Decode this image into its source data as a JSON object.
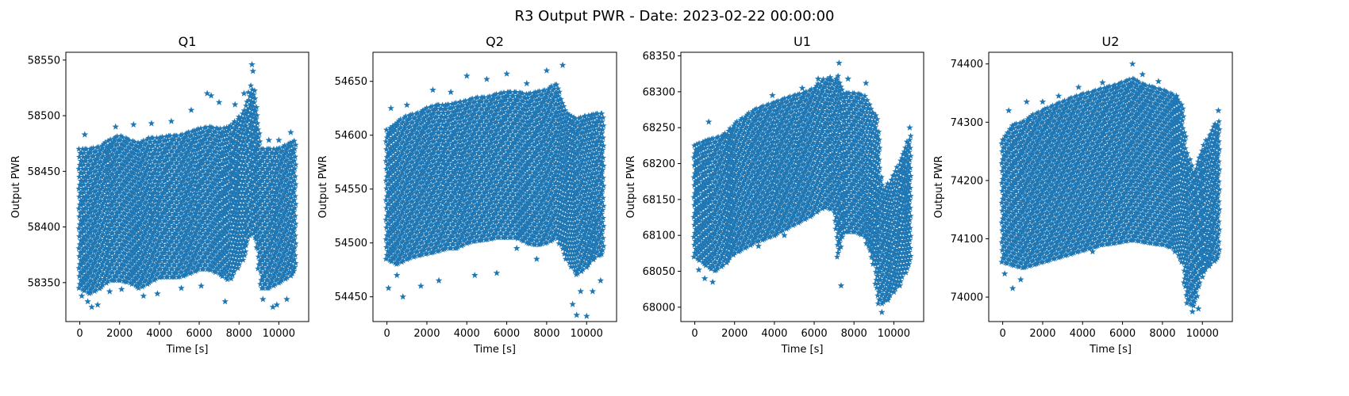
{
  "figure": {
    "suptitle": "R3 Output PWR - Date: 2023-02-22 00:00:00",
    "series_color": "#1f77b4",
    "marker": "star"
  },
  "chart_data": [
    {
      "type": "scatter",
      "title": "Q1",
      "xlabel": "Time [s]",
      "ylabel": "Output PWR",
      "xlim": [
        -700,
        11500
      ],
      "ylim": [
        58315,
        58557
      ],
      "xticks": [
        0,
        2000,
        4000,
        6000,
        8000,
        10000
      ],
      "yticks": [
        58350,
        58400,
        58450,
        58500,
        58550
      ],
      "band": [
        [
          0,
          58345,
          58470
        ],
        [
          500,
          58340,
          58470
        ],
        [
          1000,
          58345,
          58472
        ],
        [
          1500,
          58352,
          58478
        ],
        [
          2000,
          58352,
          58482
        ],
        [
          2500,
          58350,
          58478
        ],
        [
          3000,
          58345,
          58475
        ],
        [
          3500,
          58350,
          58480
        ],
        [
          4000,
          58355,
          58480
        ],
        [
          4500,
          58355,
          58482
        ],
        [
          5000,
          58355,
          58482
        ],
        [
          5500,
          58358,
          58485
        ],
        [
          6000,
          58362,
          58488
        ],
        [
          6500,
          58362,
          58490
        ],
        [
          7000,
          58358,
          58488
        ],
        [
          7500,
          58352,
          58490
        ],
        [
          8000,
          58365,
          58498
        ],
        [
          8300,
          58375,
          58505
        ],
        [
          8500,
          58392,
          58520
        ],
        [
          8700,
          58395,
          58530
        ],
        [
          8900,
          58380,
          58505
        ],
        [
          9100,
          58345,
          58470
        ],
        [
          9500,
          58345,
          58470
        ],
        [
          10000,
          58350,
          58470
        ],
        [
          10500,
          58355,
          58475
        ],
        [
          10900,
          58362,
          58478
        ]
      ],
      "outliers": [
        [
          100,
          58338
        ],
        [
          250,
          58483
        ],
        [
          400,
          58333
        ],
        [
          600,
          58328
        ],
        [
          900,
          58330
        ],
        [
          1500,
          58342
        ],
        [
          1800,
          58490
        ],
        [
          2100,
          58344
        ],
        [
          2700,
          58492
        ],
        [
          3200,
          58338
        ],
        [
          3600,
          58493
        ],
        [
          3900,
          58340
        ],
        [
          4600,
          58495
        ],
        [
          5100,
          58345
        ],
        [
          5600,
          58505
        ],
        [
          6100,
          58347
        ],
        [
          6400,
          58520
        ],
        [
          6600,
          58518
        ],
        [
          7000,
          58512
        ],
        [
          7300,
          58333
        ],
        [
          7800,
          58510
        ],
        [
          8250,
          58520
        ],
        [
          8650,
          58546
        ],
        [
          8700,
          58540
        ],
        [
          9200,
          58335
        ],
        [
          9500,
          58478
        ],
        [
          9700,
          58328
        ],
        [
          9900,
          58330
        ],
        [
          10000,
          58478
        ],
        [
          10400,
          58335
        ],
        [
          10600,
          58485
        ]
      ]
    },
    {
      "type": "scatter",
      "title": "Q2",
      "xlabel": "Time [s]",
      "ylabel": "Output PWR",
      "xlim": [
        -700,
        11500
      ],
      "ylim": [
        54427,
        54677
      ],
      "xticks": [
        0,
        2000,
        4000,
        6000,
        8000,
        10000
      ],
      "yticks": [
        54450,
        54500,
        54550,
        54600,
        54650
      ],
      "band": [
        [
          0,
          54485,
          54605
        ],
        [
          500,
          54480,
          54612
        ],
        [
          1000,
          54485,
          54618
        ],
        [
          1500,
          54488,
          54620
        ],
        [
          2000,
          54490,
          54625
        ],
        [
          2500,
          54492,
          54628
        ],
        [
          3000,
          54495,
          54628
        ],
        [
          3500,
          54495,
          54630
        ],
        [
          4000,
          54500,
          54632
        ],
        [
          4500,
          54502,
          54635
        ],
        [
          5000,
          54503,
          54635
        ],
        [
          5500,
          54505,
          54638
        ],
        [
          6000,
          54505,
          54640
        ],
        [
          6500,
          54505,
          54640
        ],
        [
          7000,
          54500,
          54638
        ],
        [
          7500,
          54498,
          54640
        ],
        [
          8000,
          54500,
          54642
        ],
        [
          8500,
          54505,
          54648
        ],
        [
          9000,
          54485,
          54620
        ],
        [
          9500,
          54470,
          54615
        ],
        [
          10000,
          54478,
          54618
        ],
        [
          10500,
          54488,
          54620
        ],
        [
          10900,
          54490,
          54620
        ]
      ],
      "outliers": [
        [
          80,
          54458
        ],
        [
          200,
          54625
        ],
        [
          500,
          54470
        ],
        [
          800,
          54450
        ],
        [
          1000,
          54628
        ],
        [
          1700,
          54460
        ],
        [
          2300,
          54642
        ],
        [
          2600,
          54465
        ],
        [
          3200,
          54640
        ],
        [
          4000,
          54655
        ],
        [
          4400,
          54470
        ],
        [
          5000,
          54652
        ],
        [
          5500,
          54472
        ],
        [
          6000,
          54657
        ],
        [
          6500,
          54495
        ],
        [
          7000,
          54648
        ],
        [
          7500,
          54485
        ],
        [
          8000,
          54660
        ],
        [
          8800,
          54665
        ],
        [
          9300,
          54443
        ],
        [
          9500,
          54433
        ],
        [
          9700,
          54455
        ],
        [
          10000,
          54432
        ],
        [
          10300,
          54455
        ],
        [
          10700,
          54465
        ]
      ]
    },
    {
      "type": "scatter",
      "title": "U1",
      "xlabel": "Time [s]",
      "ylabel": "Output PWR",
      "xlim": [
        -700,
        11500
      ],
      "ylim": [
        67980,
        68355
      ],
      "xticks": [
        0,
        2000,
        4000,
        6000,
        8000,
        10000
      ],
      "yticks": [
        68000,
        68050,
        68100,
        68150,
        68200,
        68250,
        68300,
        68350
      ],
      "band": [
        [
          0,
          68070,
          68225
        ],
        [
          500,
          68060,
          68232
        ],
        [
          1000,
          68050,
          68235
        ],
        [
          1500,
          68060,
          68240
        ],
        [
          2000,
          68075,
          68255
        ],
        [
          2500,
          68082,
          68265
        ],
        [
          3000,
          68090,
          68275
        ],
        [
          3500,
          68095,
          68280
        ],
        [
          4000,
          68100,
          68285
        ],
        [
          4500,
          68108,
          68290
        ],
        [
          5000,
          68115,
          68295
        ],
        [
          5500,
          68122,
          68298
        ],
        [
          6000,
          68130,
          68305
        ],
        [
          6500,
          68140,
          68318
        ],
        [
          7000,
          68135,
          68315
        ],
        [
          7200,
          68070,
          68322
        ],
        [
          7500,
          68105,
          68298
        ],
        [
          8000,
          68105,
          68298
        ],
        [
          8500,
          68100,
          68295
        ],
        [
          9000,
          68060,
          68270
        ],
        [
          9200,
          68005,
          68265
        ],
        [
          9400,
          68005,
          68160
        ],
        [
          9800,
          68015,
          68175
        ],
        [
          10200,
          68030,
          68195
        ],
        [
          10600,
          68050,
          68225
        ],
        [
          10900,
          68065,
          68245
        ]
      ],
      "outliers": [
        [
          200,
          68052
        ],
        [
          500,
          68040
        ],
        [
          700,
          68258
        ],
        [
          900,
          68035
        ],
        [
          1500,
          68238
        ],
        [
          2500,
          68262
        ],
        [
          3200,
          68085
        ],
        [
          3900,
          68295
        ],
        [
          4500,
          68100
        ],
        [
          5400,
          68305
        ],
        [
          6200,
          68318
        ],
        [
          6800,
          68320
        ],
        [
          7250,
          68340
        ],
        [
          7350,
          68030
        ],
        [
          7700,
          68318
        ],
        [
          8600,
          68312
        ],
        [
          9400,
          67993
        ],
        [
          9700,
          68010
        ],
        [
          10300,
          68030
        ],
        [
          10800,
          68250
        ]
      ]
    },
    {
      "type": "scatter",
      "title": "U2",
      "xlabel": "Time [s]",
      "ylabel": "Output PWR",
      "xlim": [
        -700,
        11500
      ],
      "ylim": [
        73958,
        74420
      ],
      "xticks": [
        0,
        2000,
        4000,
        6000,
        8000,
        10000
      ],
      "yticks": [
        74000,
        74100,
        74200,
        74300,
        74400
      ],
      "band": [
        [
          0,
          74060,
          74270
        ],
        [
          500,
          74055,
          74295
        ],
        [
          1000,
          74050,
          74300
        ],
        [
          1500,
          74055,
          74312
        ],
        [
          2000,
          74060,
          74320
        ],
        [
          2500,
          74065,
          74328
        ],
        [
          3000,
          74070,
          74335
        ],
        [
          3500,
          74075,
          74342
        ],
        [
          4000,
          74080,
          74348
        ],
        [
          4500,
          74085,
          74352
        ],
        [
          5000,
          74090,
          74358
        ],
        [
          5500,
          74092,
          74362
        ],
        [
          6000,
          74095,
          74368
        ],
        [
          6500,
          74098,
          74375
        ],
        [
          7000,
          74095,
          74365
        ],
        [
          7500,
          74092,
          74360
        ],
        [
          8000,
          74090,
          74355
        ],
        [
          8500,
          74085,
          74348
        ],
        [
          9000,
          74060,
          74330
        ],
        [
          9200,
          73990,
          74250
        ],
        [
          9600,
          73985,
          74215
        ],
        [
          10000,
          74040,
          74255
        ],
        [
          10500,
          74060,
          74290
        ],
        [
          10900,
          74070,
          74305
        ]
      ],
      "outliers": [
        [
          100,
          74040
        ],
        [
          300,
          74320
        ],
        [
          500,
          74015
        ],
        [
          900,
          74030
        ],
        [
          1200,
          74335
        ],
        [
          2000,
          74335
        ],
        [
          2800,
          74345
        ],
        [
          3800,
          74360
        ],
        [
          4500,
          74078
        ],
        [
          5000,
          74368
        ],
        [
          5600,
          74360
        ],
        [
          6500,
          74400
        ],
        [
          7000,
          74382
        ],
        [
          7800,
          74370
        ],
        [
          8700,
          74345
        ],
        [
          9500,
          73975
        ],
        [
          9800,
          73980
        ],
        [
          10200,
          74055
        ],
        [
          10800,
          74320
        ]
      ]
    }
  ]
}
